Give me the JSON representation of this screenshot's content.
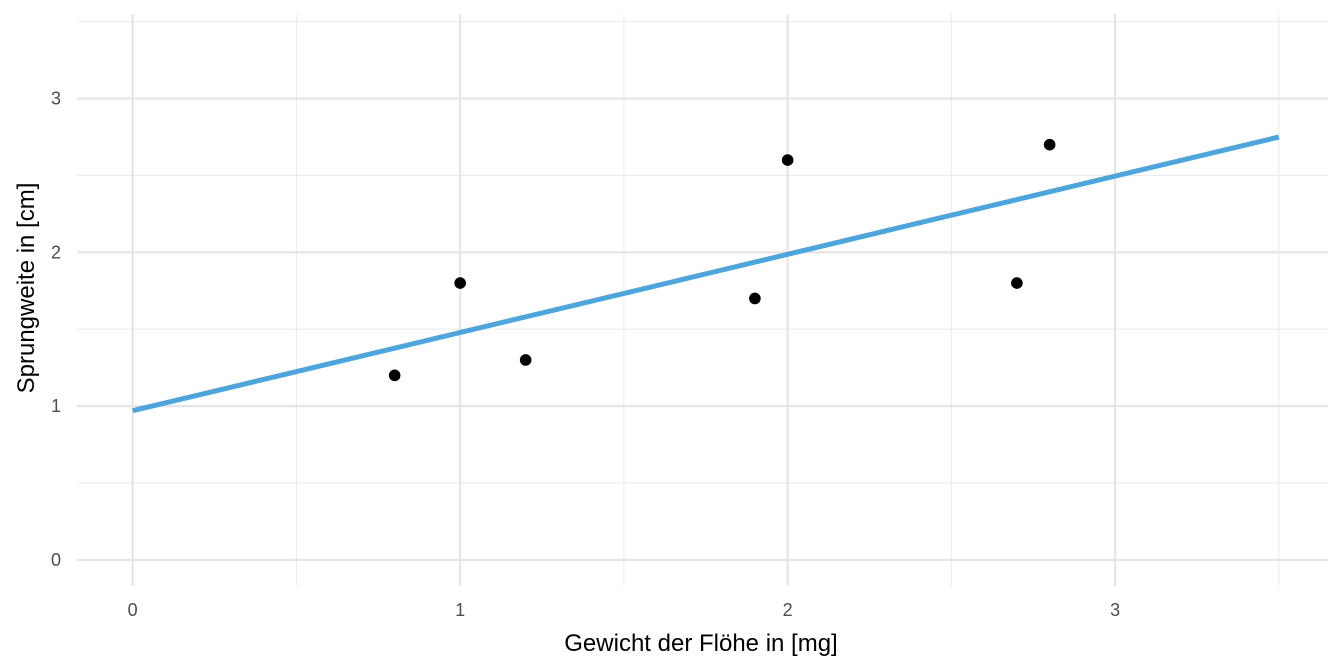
{
  "chart_data": {
    "type": "scatter",
    "title": "",
    "xlabel": "Gewicht der Flöhe in [mg]",
    "ylabel": "Sprungweite in [cm]",
    "xlim": [
      -0.17,
      3.65
    ],
    "ylim": [
      -0.17,
      3.55
    ],
    "x_ticks": [
      0,
      1,
      2,
      3
    ],
    "y_ticks": [
      0,
      1,
      2,
      3
    ],
    "x_minor": [
      0.5,
      1.5,
      2.5,
      3.5
    ],
    "y_minor": [
      0.5,
      1.5,
      2.5,
      3.5
    ],
    "grid": true,
    "points": {
      "x": [
        0.8,
        1.0,
        1.2,
        1.9,
        2.0,
        2.7,
        2.8
      ],
      "y": [
        1.2,
        1.8,
        1.3,
        1.7,
        2.6,
        1.8,
        2.7
      ],
      "color": "#000000"
    },
    "fit_line": {
      "x": [
        0,
        3.5
      ],
      "y": [
        0.97,
        2.75
      ],
      "color": "#4ea5dc"
    }
  }
}
